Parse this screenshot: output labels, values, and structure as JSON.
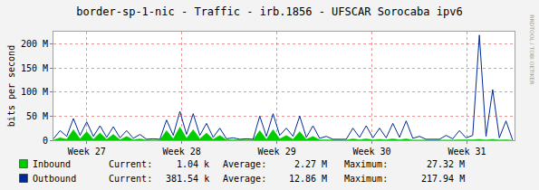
{
  "chart_data": {
    "type": "line",
    "title": "border-sp-1-nic - Traffic - irb.1856 - UFSCAR Sorocaba ipv6",
    "y_label": "bits per second",
    "watermark": "RRDTOOL / TOBI OETIKER",
    "grid": true,
    "x": [
      26.65,
      26.72,
      26.79,
      26.86,
      26.93,
      27,
      27.07,
      27.14,
      27.21,
      27.28,
      27.35,
      27.42,
      27.49,
      27.56,
      27.63,
      27.7,
      27.77,
      27.84,
      27.91,
      27.98,
      28.05,
      28.12,
      28.19,
      28.26,
      28.33,
      28.4,
      28.47,
      28.54,
      28.61,
      28.68,
      28.75,
      28.82,
      28.89,
      28.96,
      29.03,
      29.1,
      29.17,
      29.24,
      29.31,
      29.38,
      29.45,
      29.52,
      29.59,
      29.66,
      29.73,
      29.8,
      29.87,
      29.94,
      30.01,
      30.08,
      30.15,
      30.22,
      30.29,
      30.36,
      30.43,
      30.5,
      30.57,
      30.64,
      30.71,
      30.78,
      30.85,
      30.92,
      30.99,
      31.06,
      31.13,
      31.2,
      31.27,
      31.34,
      31.41,
      31.48
    ],
    "xlim": [
      26.65,
      31.5
    ],
    "xticks": [
      {
        "value": 27,
        "label": "Week 27"
      },
      {
        "value": 28,
        "label": "Week 28"
      },
      {
        "value": 29,
        "label": "Week 29"
      },
      {
        "value": 30,
        "label": "Week 30"
      },
      {
        "value": 31,
        "label": "Week 31"
      }
    ],
    "ylim": [
      0,
      225000000
    ],
    "yticks": [
      0,
      {
        "value": 50000000,
        "label": "50 M"
      },
      {
        "value": 100000000,
        "label": "100 M"
      },
      {
        "value": 150000000,
        "label": "150 M"
      },
      {
        "value": 200000000,
        "label": "200 M"
      }
    ],
    "stat_labels": [
      "Current:",
      "Average:",
      "Maximum:"
    ],
    "series": [
      {
        "name": "Inbound",
        "type": "area",
        "color": "#00cc00",
        "stats": [
          {
            "value": 1040,
            "label": "1.04 k"
          },
          {
            "value": 2270000,
            "label": "2.27 M"
          },
          {
            "value": 27320000,
            "label": "27.32 M"
          }
        ],
        "values": [
          500000,
          5000000,
          2000000,
          22000000,
          3000000,
          18000000,
          2000000,
          15000000,
          2000000,
          12000000,
          1000000,
          8000000,
          1000000,
          3000000,
          500000,
          500000,
          500000,
          20000000,
          3000000,
          27320000,
          4000000,
          22000000,
          3000000,
          15000000,
          2000000,
          10000000,
          1000000,
          1000000,
          500000,
          500000,
          500000,
          20000000,
          2000000,
          22000000,
          3000000,
          10000000,
          2000000,
          18000000,
          2000000,
          8000000,
          1000000,
          1000000,
          500000,
          300000,
          300000,
          3000000,
          1000000,
          3000000,
          1000000,
          2000000,
          1000000,
          3000000,
          1000000,
          3000000,
          500000,
          500000,
          300000,
          300000,
          300000,
          1000000,
          500000,
          1000000,
          500000,
          1000000,
          2000000,
          500000,
          2000000,
          500000,
          1000000,
          1040
        ]
      },
      {
        "name": "Outbound",
        "type": "line",
        "color": "#002a97",
        "stats": [
          {
            "value": 381540,
            "label": "381.54 k"
          },
          {
            "value": 12860000,
            "label": "12.86 M"
          },
          {
            "value": 217940000,
            "label": "217.94 M"
          }
        ],
        "values": [
          3000000,
          20000000,
          8000000,
          45000000,
          10000000,
          38000000,
          8000000,
          30000000,
          6000000,
          28000000,
          5000000,
          20000000,
          4000000,
          12000000,
          2000000,
          3000000,
          2000000,
          42000000,
          10000000,
          60000000,
          12000000,
          55000000,
          10000000,
          35000000,
          6000000,
          25000000,
          3000000,
          5000000,
          2000000,
          3000000,
          2000000,
          50000000,
          8000000,
          55000000,
          10000000,
          25000000,
          8000000,
          50000000,
          6000000,
          30000000,
          4000000,
          8000000,
          2000000,
          2000000,
          2000000,
          25000000,
          6000000,
          30000000,
          5000000,
          25000000,
          5000000,
          35000000,
          6000000,
          40000000,
          4000000,
          8000000,
          2000000,
          2000000,
          2000000,
          10000000,
          3000000,
          20000000,
          5000000,
          10000000,
          217940000,
          8000000,
          105000000,
          5000000,
          40000000,
          381540
        ]
      }
    ]
  }
}
